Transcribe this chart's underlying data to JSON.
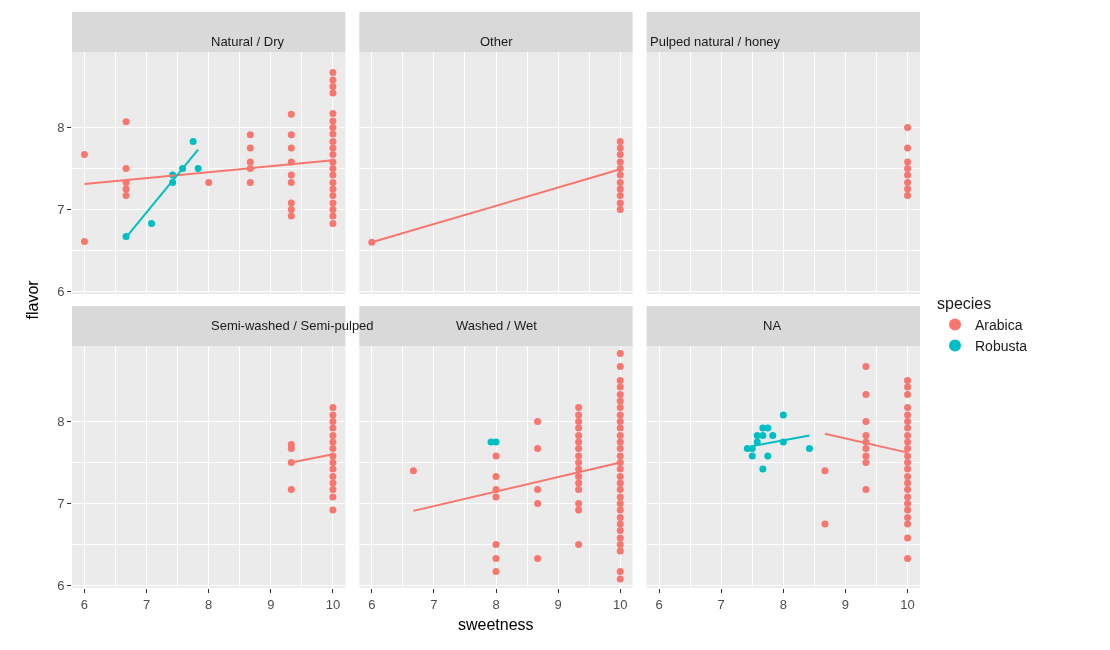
{
  "chart_data": [
    {
      "type": "scatter",
      "title": "Natural / Dry",
      "xlim": [
        5.8,
        10.2
      ],
      "ylim": [
        5.97,
        8.92
      ],
      "xticks": [
        6,
        7,
        8,
        9,
        10
      ],
      "yticks": [
        6,
        7,
        8
      ],
      "grid": true,
      "marker": "circle",
      "tick_labels": "y",
      "legend": "right",
      "legend_title": "species",
      "series": [
        {
          "name": "Arabica",
          "color": "#f8766d",
          "x": [
            6,
            6,
            6.67,
            6.67,
            6.67,
            6.67,
            6.67,
            8,
            8.67,
            8.67,
            8.67,
            8.67,
            8.67,
            9.33,
            9.33,
            9.33,
            9.33,
            9.33,
            9.33,
            9.33,
            9.33,
            9.33,
            10,
            10,
            10,
            10,
            10,
            10,
            10,
            10,
            10,
            10,
            10,
            10,
            10,
            10,
            10,
            10,
            10,
            10,
            10,
            10,
            10
          ],
          "values": [
            7.67,
            6.61,
            8.07,
            7.5,
            7.33,
            7.25,
            7.17,
            7.33,
            7.91,
            7.75,
            7.58,
            7.5,
            7.33,
            8.16,
            7.91,
            7.75,
            7.58,
            7.42,
            7.33,
            7.08,
            7,
            6.92,
            8.67,
            8.58,
            8.5,
            8.42,
            8.17,
            8.08,
            8,
            7.92,
            7.83,
            7.75,
            7.67,
            7.58,
            7.5,
            7.42,
            7.33,
            7.25,
            7.17,
            7.08,
            7,
            6.92,
            6.83
          ]
        },
        {
          "name": "Robusta",
          "color": "#00bfc4",
          "x": [
            6.67,
            7.08,
            7.42,
            7.42,
            7.58,
            7.75,
            7.83
          ],
          "values": [
            6.67,
            6.83,
            7.33,
            7.42,
            7.5,
            7.83,
            7.5
          ]
        },
        {
          "type": "line",
          "marker": "none",
          "color": "#f8766d",
          "x": [
            6,
            10
          ],
          "values": [
            7.31,
            7.6
          ]
        },
        {
          "type": "line",
          "marker": "none",
          "color": "#00bfc4",
          "x": [
            6.67,
            7.83
          ],
          "values": [
            6.66,
            7.73
          ]
        }
      ]
    },
    {
      "type": "scatter",
      "title": "Other",
      "xlim": [
        5.8,
        10.2
      ],
      "ylim": [
        5.97,
        8.92
      ],
      "xticks": [
        6,
        7,
        8,
        9,
        10
      ],
      "yticks": [
        6,
        7,
        8
      ],
      "grid": true,
      "marker": "circle",
      "tick_labels": false,
      "series": [
        {
          "color": "#f8766d",
          "x": [
            6,
            10,
            10,
            10,
            10,
            10,
            10,
            10,
            10,
            10,
            10,
            10
          ],
          "values": [
            6.6,
            7.83,
            7.75,
            7.67,
            7.58,
            7.5,
            7.42,
            7.33,
            7.25,
            7.17,
            7.08,
            7
          ]
        },
        {
          "type": "line",
          "marker": "none",
          "color": "#f8766d",
          "x": [
            6,
            10
          ],
          "values": [
            6.6,
            7.49
          ]
        }
      ]
    },
    {
      "type": "scatter",
      "title": "Pulped natural / honey",
      "xlim": [
        5.8,
        10.2
      ],
      "ylim": [
        5.97,
        8.92
      ],
      "xticks": [
        6,
        7,
        8,
        9,
        10
      ],
      "yticks": [
        6,
        7,
        8
      ],
      "grid": true,
      "marker": "circle",
      "tick_labels": false,
      "series": [
        {
          "color": "#f8766d",
          "x": [
            10,
            10,
            10,
            10,
            10,
            10,
            10,
            10
          ],
          "values": [
            8,
            7.75,
            7.58,
            7.5,
            7.42,
            7.33,
            7.25,
            7.17
          ]
        }
      ]
    },
    {
      "type": "scatter",
      "title": "Semi-washed / Semi-pulped",
      "xlim": [
        5.8,
        10.2
      ],
      "ylim": [
        5.97,
        8.92
      ],
      "xticks": [
        6,
        7,
        8,
        9,
        10
      ],
      "yticks": [
        6,
        7,
        8
      ],
      "grid": true,
      "marker": "circle",
      "ylabel": "flavor",
      "series": [
        {
          "color": "#f8766d",
          "x": [
            9.33,
            9.33,
            9.33,
            9.33,
            10,
            10,
            10,
            10,
            10,
            10,
            10,
            10,
            10,
            10,
            10,
            10,
            10,
            10,
            10
          ],
          "values": [
            7.72,
            7.67,
            7.5,
            7.17,
            8.17,
            8.08,
            8,
            7.92,
            7.83,
            7.75,
            7.67,
            7.58,
            7.5,
            7.42,
            7.33,
            7.25,
            7.17,
            7.08,
            6.92
          ]
        },
        {
          "type": "line",
          "marker": "none",
          "color": "#f8766d",
          "x": [
            9.33,
            10
          ],
          "values": [
            7.5,
            7.6
          ]
        }
      ]
    },
    {
      "type": "scatter",
      "title": "Washed / Wet",
      "xlim": [
        5.8,
        10.2
      ],
      "ylim": [
        5.97,
        8.92
      ],
      "xticks": [
        6,
        7,
        8,
        9,
        10
      ],
      "yticks": [
        6,
        7,
        8
      ],
      "grid": true,
      "marker": "circle",
      "tick_labels": "x",
      "xlabel": "sweetness",
      "series": [
        {
          "color": "#f8766d",
          "x": [
            6.67,
            8,
            8,
            8,
            8,
            8,
            8,
            8,
            8.67,
            8.67,
            8.67,
            8.67,
            8.67,
            9.33,
            9.33,
            9.33,
            9.33,
            9.33,
            9.33,
            9.33,
            9.33,
            9.33,
            9.33,
            9.33,
            9.33,
            9.33,
            9.33,
            9.33,
            9.33,
            10,
            10,
            10,
            10,
            10,
            10,
            10,
            10,
            10,
            10,
            10,
            10,
            10,
            10,
            10,
            10,
            10,
            10,
            10,
            10,
            10,
            10,
            10,
            10,
            10,
            10,
            10,
            10,
            10,
            10
          ],
          "values": [
            7.4,
            7.58,
            7.33,
            7.17,
            7.08,
            6.5,
            6.33,
            6.17,
            8,
            7.67,
            7.17,
            7,
            6.33,
            8.17,
            8.08,
            8,
            7.92,
            7.83,
            7.75,
            7.67,
            7.58,
            7.5,
            7.42,
            7.33,
            7.25,
            7.17,
            7,
            6.92,
            6.5,
            8.83,
            8.67,
            8.5,
            8.42,
            8.33,
            8.25,
            8.17,
            8.08,
            8,
            7.92,
            7.83,
            7.75,
            7.67,
            7.58,
            7.5,
            7.42,
            7.33,
            7.25,
            7.17,
            7.08,
            7,
            6.92,
            6.83,
            6.75,
            6.67,
            6.58,
            6.5,
            6.42,
            6.17,
            6.08
          ]
        },
        {
          "color": "#00bfc4",
          "x": [
            7.92,
            8
          ],
          "values": [
            7.75,
            7.75
          ]
        },
        {
          "type": "line",
          "marker": "none",
          "color": "#f8766d",
          "x": [
            6.67,
            10
          ],
          "values": [
            6.91,
            7.5
          ]
        }
      ]
    },
    {
      "type": "scatter",
      "title": "NA",
      "xlim": [
        5.8,
        10.2
      ],
      "ylim": [
        5.97,
        8.92
      ],
      "xticks": [
        6,
        7,
        8,
        9,
        10
      ],
      "yticks": [
        6,
        7,
        8
      ],
      "grid": true,
      "marker": "circle",
      "tick_labels": "x",
      "series": [
        {
          "color": "#f8766d",
          "x": [
            8.67,
            8.67,
            9.33,
            9.33,
            9.33,
            9.33,
            9.33,
            9.33,
            9.33,
            9.33,
            9.33,
            10,
            10,
            10,
            10,
            10,
            10,
            10,
            10,
            10,
            10,
            10,
            10,
            10,
            10,
            10,
            10,
            10,
            10,
            10,
            10,
            10,
            10,
            10
          ],
          "values": [
            7.4,
            6.75,
            8.67,
            8.33,
            8,
            7.83,
            7.75,
            7.67,
            7.58,
            7.5,
            7.17,
            8.5,
            8.42,
            8.33,
            8.17,
            8.08,
            8,
            7.92,
            7.83,
            7.75,
            7.67,
            7.58,
            7.5,
            7.42,
            7.33,
            7.25,
            7.17,
            7.08,
            7,
            6.92,
            6.83,
            6.75,
            6.58,
            6.33
          ]
        },
        {
          "color": "#00bfc4",
          "x": [
            7.42,
            7.5,
            7.5,
            7.58,
            7.58,
            7.67,
            7.67,
            7.67,
            7.75,
            7.75,
            7.83,
            8,
            8,
            8.42
          ],
          "values": [
            7.67,
            7.67,
            7.58,
            7.75,
            7.83,
            7.92,
            7.83,
            7.42,
            7.92,
            7.58,
            7.83,
            8.08,
            7.75,
            7.67
          ]
        },
        {
          "type": "line",
          "marker": "none",
          "color": "#00bfc4",
          "x": [
            7.5,
            8.42
          ],
          "values": [
            7.7,
            7.83
          ]
        },
        {
          "type": "line",
          "marker": "none",
          "color": "#f8766d",
          "x": [
            8.67,
            10
          ],
          "values": [
            7.85,
            7.62
          ]
        }
      ]
    }
  ]
}
